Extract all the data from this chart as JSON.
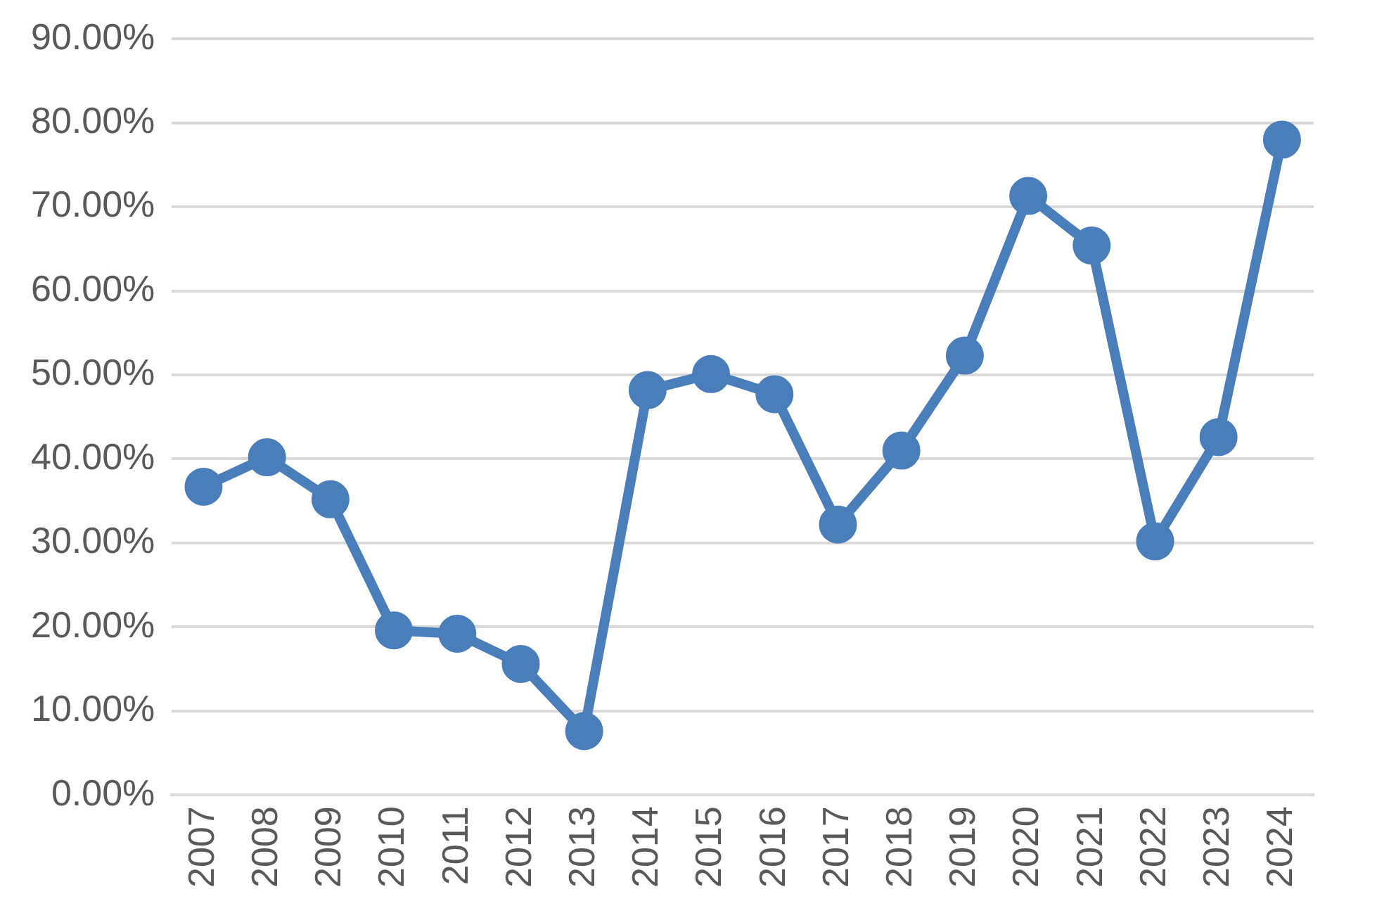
{
  "chart_data": {
    "type": "line",
    "categories": [
      "2007",
      "2008",
      "2009",
      "2010",
      "2011",
      "2012",
      "2013",
      "2014",
      "2015",
      "2016",
      "2017",
      "2018",
      "2019",
      "2020",
      "2021",
      "2022",
      "2023",
      "2024"
    ],
    "series": [
      {
        "color": "#4a7ebb",
        "values": [
          36.7,
          40.2,
          35.2,
          19.6,
          19.2,
          15.6,
          7.6,
          48.2,
          50.1,
          47.7,
          32.2,
          41.0,
          52.3,
          71.3,
          65.4,
          30.2,
          42.6,
          78.0
        ]
      }
    ],
    "ylim": [
      0,
      90
    ],
    "yticks": [
      {
        "value": 0,
        "label": "0.00%"
      },
      {
        "value": 10,
        "label": "10.00%"
      },
      {
        "value": 20,
        "label": "20.00%"
      },
      {
        "value": 30,
        "label": "30.00%"
      },
      {
        "value": 40,
        "label": "40.00%"
      },
      {
        "value": 50,
        "label": "50.00%"
      },
      {
        "value": 60,
        "label": "60.00%"
      },
      {
        "value": 70,
        "label": "70.00%"
      },
      {
        "value": 80,
        "label": "80.00%"
      },
      {
        "value": 90,
        "label": "90.00%"
      }
    ],
    "grid": "y",
    "legend": false,
    "marker": "circle",
    "line_style": "solid"
  }
}
